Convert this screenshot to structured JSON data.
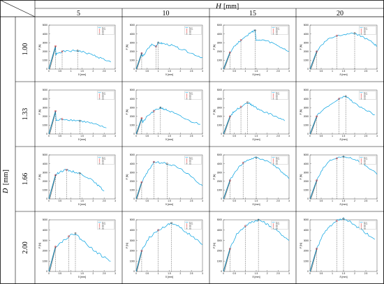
{
  "header": {
    "col_var": "H",
    "col_unit": "[mm]",
    "row_var": "D",
    "row_unit": "[mm]"
  },
  "columns": [
    "5",
    "10",
    "15",
    "20"
  ],
  "rows": [
    "1.00",
    "1.33",
    "1.66",
    "2.00"
  ],
  "colors": {
    "line": "#00a0e0",
    "initial": "#606060",
    "grid": "#000000",
    "marker_red": "#d11",
    "marker_dark": "#333"
  },
  "panel_text": {
    "ylabel": "F [N]",
    "xlabel": "δ [mm]",
    "legend": [
      "Force",
      "Wmax",
      "W1",
      "W2",
      "W3"
    ]
  },
  "chart_data": [
    {
      "row": "1.00",
      "col": "5",
      "type": "line",
      "xlim": [
        0,
        3
      ],
      "ylim": [
        0,
        5000
      ],
      "series": [
        {
          "x": [
            0,
            0.3,
            0.32,
            0.35,
            0.6,
            1.0,
            1.3,
            1.6,
            2.0,
            2.4,
            2.8
          ],
          "y": [
            0,
            2600,
            1500,
            1800,
            2000,
            2050,
            2100,
            1900,
            1600,
            1200,
            800
          ]
        }
      ],
      "markers": [
        {
          "x": 0.3,
          "y": 2600
        },
        {
          "x": 0.6,
          "y": 2000
        },
        {
          "x": 1.3,
          "y": 2100
        }
      ]
    },
    {
      "row": "1.00",
      "col": "10",
      "type": "line",
      "xlim": [
        0,
        3
      ],
      "ylim": [
        0,
        5000
      ],
      "series": [
        {
          "x": [
            0,
            0.25,
            0.3,
            0.5,
            0.7,
            0.9,
            1.0,
            1.2,
            1.6,
            2.0,
            2.5,
            3.0
          ],
          "y": [
            0,
            1800,
            1400,
            2200,
            2800,
            2600,
            3000,
            2900,
            2700,
            2300,
            1800,
            1300
          ]
        }
      ],
      "markers": [
        {
          "x": 0.25,
          "y": 1800
        },
        {
          "x": 0.9,
          "y": 2600
        },
        {
          "x": 1.0,
          "y": 3000
        }
      ]
    },
    {
      "row": "1.00",
      "col": "15",
      "type": "line",
      "xlim": [
        0,
        3
      ],
      "ylim": [
        0,
        5000
      ],
      "series": [
        {
          "x": [
            0,
            0.3,
            0.5,
            0.8,
            1.1,
            1.3,
            1.45,
            1.5,
            1.8,
            2.2,
            2.6,
            3.0
          ],
          "y": [
            0,
            1900,
            2600,
            3300,
            3900,
            4200,
            4400,
            3200,
            3300,
            3000,
            2500,
            2000
          ]
        }
      ],
      "markers": [
        {
          "x": 0.3,
          "y": 1900
        },
        {
          "x": 0.8,
          "y": 3300
        },
        {
          "x": 1.45,
          "y": 4400
        }
      ]
    },
    {
      "row": "1.00",
      "col": "20",
      "type": "line",
      "xlim": [
        0,
        3
      ],
      "ylim": [
        0,
        5000
      ],
      "series": [
        {
          "x": [
            0,
            0.3,
            0.5,
            0.8,
            1.2,
            1.6,
            2.0,
            2.4,
            2.8,
            3.0
          ],
          "y": [
            0,
            2000,
            2700,
            3400,
            3800,
            4000,
            4100,
            3600,
            3000,
            2600
          ]
        }
      ],
      "markers": [
        {
          "x": 0.3,
          "y": 2000
        },
        {
          "x": 1.2,
          "y": 3800
        },
        {
          "x": 2.0,
          "y": 4100
        }
      ]
    },
    {
      "row": "1.33",
      "col": "5",
      "type": "line",
      "xlim": [
        0,
        3
      ],
      "ylim": [
        0,
        5000
      ],
      "series": [
        {
          "x": [
            0,
            0.3,
            0.33,
            0.6,
            1.0,
            1.4,
            1.8,
            2.2,
            2.6
          ],
          "y": [
            0,
            2600,
            1500,
            1700,
            1600,
            1500,
            1300,
            1000,
            700
          ]
        }
      ],
      "markers": [
        {
          "x": 0.3,
          "y": 2600
        },
        {
          "x": 0.6,
          "y": 1700
        },
        {
          "x": 1.4,
          "y": 1500
        }
      ]
    },
    {
      "row": "1.33",
      "col": "10",
      "type": "line",
      "xlim": [
        0,
        3
      ],
      "ylim": [
        0,
        5000
      ],
      "series": [
        {
          "x": [
            0,
            0.25,
            0.3,
            0.5,
            0.8,
            1.1,
            1.3,
            1.6,
            2.0,
            2.4,
            2.9
          ],
          "y": [
            0,
            1800,
            1300,
            2000,
            2600,
            3000,
            2800,
            2500,
            2000,
            1500,
            1100
          ]
        }
      ],
      "markers": [
        {
          "x": 0.25,
          "y": 1800
        },
        {
          "x": 0.8,
          "y": 2600
        },
        {
          "x": 1.1,
          "y": 3000
        }
      ]
    },
    {
      "row": "1.33",
      "col": "15",
      "type": "line",
      "xlim": [
        0,
        3
      ],
      "ylim": [
        0,
        5000
      ],
      "series": [
        {
          "x": [
            0,
            0.3,
            0.5,
            0.8,
            1.1,
            1.3,
            1.6,
            2.0,
            2.4,
            2.8
          ],
          "y": [
            0,
            2000,
            2600,
            3100,
            3600,
            3300,
            2800,
            2400,
            2000,
            1500
          ]
        }
      ],
      "markers": [
        {
          "x": 0.3,
          "y": 2000
        },
        {
          "x": 0.8,
          "y": 3100
        },
        {
          "x": 1.1,
          "y": 3600
        }
      ]
    },
    {
      "row": "1.33",
      "col": "20",
      "type": "line",
      "xlim": [
        0,
        3
      ],
      "ylim": [
        0,
        5000
      ],
      "series": [
        {
          "x": [
            0,
            0.3,
            0.5,
            0.9,
            1.3,
            1.6,
            1.8,
            2.1,
            2.5,
            2.9
          ],
          "y": [
            0,
            2000,
            2600,
            3300,
            4000,
            4300,
            3900,
            3300,
            2700,
            2200
          ]
        }
      ],
      "markers": [
        {
          "x": 0.3,
          "y": 2000
        },
        {
          "x": 1.3,
          "y": 4000
        },
        {
          "x": 1.6,
          "y": 4300
        }
      ]
    },
    {
      "row": "1.66",
      "col": "5",
      "type": "line",
      "xlim": [
        0,
        3
      ],
      "ylim": [
        0,
        5000
      ],
      "series": [
        {
          "x": [
            0,
            0.3,
            0.5,
            0.8,
            1.1,
            1.4,
            1.8,
            2.2,
            2.5
          ],
          "y": [
            0,
            2700,
            3100,
            3300,
            3100,
            2900,
            2400,
            1600,
            900
          ]
        }
      ],
      "markers": [
        {
          "x": 0.3,
          "y": 2700
        },
        {
          "x": 0.8,
          "y": 3300
        },
        {
          "x": 1.4,
          "y": 2900
        }
      ]
    },
    {
      "row": "1.66",
      "col": "10",
      "type": "line",
      "xlim": [
        0,
        3
      ],
      "ylim": [
        0,
        5000
      ],
      "series": [
        {
          "x": [
            0,
            0.25,
            0.5,
            0.8,
            1.1,
            1.4,
            1.8,
            2.2,
            2.6,
            3.0
          ],
          "y": [
            0,
            1900,
            3000,
            4200,
            4100,
            4000,
            3700,
            3100,
            2300,
            1500
          ]
        }
      ],
      "markers": [
        {
          "x": 0.25,
          "y": 1900
        },
        {
          "x": 0.8,
          "y": 4200
        },
        {
          "x": 1.4,
          "y": 4000
        }
      ]
    },
    {
      "row": "1.66",
      "col": "15",
      "type": "line",
      "xlim": [
        0,
        3
      ],
      "ylim": [
        0,
        5000
      ],
      "series": [
        {
          "x": [
            0,
            0.3,
            0.6,
            0.9,
            1.2,
            1.5,
            1.9,
            2.3,
            2.7,
            3.0
          ],
          "y": [
            0,
            2100,
            3300,
            4100,
            4500,
            4700,
            4400,
            3900,
            3000,
            2300
          ]
        }
      ],
      "markers": [
        {
          "x": 0.3,
          "y": 2100
        },
        {
          "x": 0.9,
          "y": 4100
        },
        {
          "x": 1.5,
          "y": 4700
        }
      ]
    },
    {
      "row": "1.66",
      "col": "20",
      "type": "line",
      "xlim": [
        0,
        3
      ],
      "ylim": [
        0,
        5000
      ],
      "series": [
        {
          "x": [
            0,
            0.3,
            0.6,
            0.9,
            1.2,
            1.5,
            1.8,
            2.2,
            2.6,
            3.0
          ],
          "y": [
            0,
            2100,
            3500,
            4400,
            4600,
            4800,
            4700,
            4300,
            3600,
            2800
          ]
        }
      ],
      "markers": [
        {
          "x": 0.3,
          "y": 2100
        },
        {
          "x": 1.2,
          "y": 4600
        },
        {
          "x": 1.5,
          "y": 4800
        }
      ]
    },
    {
      "row": "2.00",
      "col": "5",
      "type": "line",
      "xlim": [
        0,
        3
      ],
      "ylim": [
        0,
        5000
      ],
      "series": [
        {
          "x": [
            0,
            0.3,
            0.6,
            0.9,
            1.2,
            1.4,
            1.7,
            2.0,
            2.4,
            2.8
          ],
          "y": [
            0,
            2400,
            2900,
            3400,
            3700,
            3200,
            2700,
            2100,
            1500,
            1000
          ]
        }
      ],
      "markers": [
        {
          "x": 0.3,
          "y": 2400
        },
        {
          "x": 0.9,
          "y": 3400
        },
        {
          "x": 1.2,
          "y": 3700
        }
      ]
    },
    {
      "row": "2.00",
      "col": "10",
      "type": "line",
      "xlim": [
        0,
        3
      ],
      "ylim": [
        0,
        5000
      ],
      "series": [
        {
          "x": [
            0,
            0.25,
            0.6,
            1.0,
            1.4,
            1.6,
            1.9,
            2.2,
            2.6,
            3.0
          ],
          "y": [
            0,
            2000,
            3300,
            4000,
            4500,
            4700,
            4400,
            3900,
            3300,
            2600
          ]
        }
      ],
      "markers": [
        {
          "x": 0.25,
          "y": 2000
        },
        {
          "x": 1.0,
          "y": 4000
        },
        {
          "x": 1.6,
          "y": 4700
        }
      ]
    },
    {
      "row": "2.00",
      "col": "15",
      "type": "line",
      "xlim": [
        0,
        3
      ],
      "ylim": [
        0,
        5000
      ],
      "series": [
        {
          "x": [
            0,
            0.3,
            0.6,
            1.0,
            1.3,
            1.6,
            1.9,
            2.2,
            2.6,
            3.0
          ],
          "y": [
            0,
            2200,
            3600,
            4400,
            4800,
            5000,
            4700,
            4300,
            3700,
            3000
          ]
        }
      ],
      "markers": [
        {
          "x": 0.3,
          "y": 2200
        },
        {
          "x": 1.0,
          "y": 4400
        },
        {
          "x": 1.6,
          "y": 5000
        }
      ]
    },
    {
      "row": "2.00",
      "col": "20",
      "type": "line",
      "xlim": [
        0,
        3
      ],
      "ylim": [
        0,
        5000
      ],
      "series": [
        {
          "x": [
            0,
            0.3,
            0.6,
            0.9,
            1.2,
            1.5,
            1.8,
            2.1,
            2.5,
            2.9
          ],
          "y": [
            0,
            2200,
            3600,
            4400,
            4900,
            5100,
            4800,
            4300,
            3700,
            3100
          ]
        }
      ],
      "markers": [
        {
          "x": 0.3,
          "y": 2200
        },
        {
          "x": 1.2,
          "y": 4900
        },
        {
          "x": 1.5,
          "y": 5100
        }
      ]
    }
  ]
}
